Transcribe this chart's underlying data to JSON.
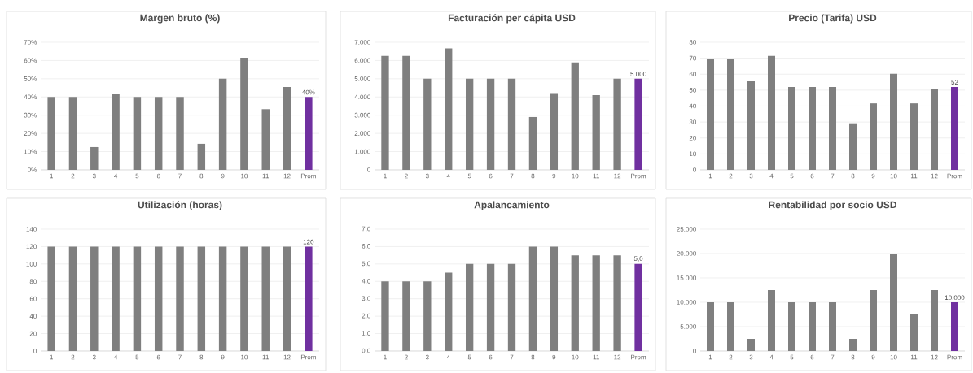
{
  "chart_data": [
    {
      "type": "bar",
      "title": "Margen bruto (%)",
      "categories": [
        "1",
        "2",
        "3",
        "4",
        "5",
        "6",
        "7",
        "8",
        "9",
        "10",
        "11",
        "12",
        "Prom"
      ],
      "values": [
        40,
        40,
        12.5,
        41.5,
        40,
        40,
        40,
        14.3,
        50,
        61.5,
        33.3,
        45.5,
        40
      ],
      "colors": [
        "#7f7f7f",
        "#7f7f7f",
        "#7f7f7f",
        "#7f7f7f",
        "#7f7f7f",
        "#7f7f7f",
        "#7f7f7f",
        "#7f7f7f",
        "#7f7f7f",
        "#7f7f7f",
        "#7f7f7f",
        "#7f7f7f",
        "#7030a0"
      ],
      "value_labels": [
        null,
        null,
        null,
        null,
        null,
        null,
        null,
        null,
        null,
        null,
        null,
        null,
        "40%"
      ],
      "ylim": [
        0,
        70
      ],
      "yticks": [
        {
          "value": 0,
          "label": "0%"
        },
        {
          "value": 10,
          "label": "10%"
        },
        {
          "value": 20,
          "label": "20%"
        },
        {
          "value": 30,
          "label": "30%"
        },
        {
          "value": 40,
          "label": "40%"
        },
        {
          "value": 50,
          "label": "50%"
        },
        {
          "value": 60,
          "label": "60%"
        },
        {
          "value": 70,
          "label": "70%"
        }
      ],
      "grid": "y"
    },
    {
      "type": "bar",
      "title": "Facturación per cápita USD",
      "categories": [
        "1",
        "2",
        "3",
        "4",
        "5",
        "6",
        "7",
        "8",
        "9",
        "10",
        "11",
        "12",
        "Prom"
      ],
      "values": [
        6250,
        6250,
        5000,
        6670,
        5000,
        5000,
        5000,
        2900,
        4170,
        5900,
        4100,
        5000,
        5000
      ],
      "colors": [
        "#7f7f7f",
        "#7f7f7f",
        "#7f7f7f",
        "#7f7f7f",
        "#7f7f7f",
        "#7f7f7f",
        "#7f7f7f",
        "#7f7f7f",
        "#7f7f7f",
        "#7f7f7f",
        "#7f7f7f",
        "#7f7f7f",
        "#7030a0"
      ],
      "value_labels": [
        null,
        null,
        null,
        null,
        null,
        null,
        null,
        null,
        null,
        null,
        null,
        null,
        "5.000"
      ],
      "ylim": [
        0,
        7000
      ],
      "yticks": [
        0,
        {
          "value": 1000,
          "label": "1.000"
        },
        {
          "value": 2000,
          "label": "2.000"
        },
        {
          "value": 3000,
          "label": "3.000"
        },
        {
          "value": 4000,
          "label": "4.000"
        },
        {
          "value": 5000,
          "label": "5.000"
        },
        {
          "value": 6000,
          "label": "6.000"
        },
        {
          "value": 7000,
          "label": "7.000"
        }
      ],
      "grid": "y"
    },
    {
      "type": "bar",
      "title": "Precio (Tarifa) USD",
      "categories": [
        "1",
        "2",
        "3",
        "4",
        "5",
        "6",
        "7",
        "8",
        "9",
        "10",
        "11",
        "12",
        "Prom"
      ],
      "values": [
        69.5,
        69.5,
        55.6,
        71.5,
        52,
        52,
        52,
        29.2,
        41.7,
        60.2,
        41.7,
        50.8,
        52
      ],
      "colors": [
        "#7f7f7f",
        "#7f7f7f",
        "#7f7f7f",
        "#7f7f7f",
        "#7f7f7f",
        "#7f7f7f",
        "#7f7f7f",
        "#7f7f7f",
        "#7f7f7f",
        "#7f7f7f",
        "#7f7f7f",
        "#7f7f7f",
        "#7030a0"
      ],
      "value_labels": [
        null,
        null,
        null,
        null,
        null,
        null,
        null,
        null,
        null,
        null,
        null,
        null,
        "52"
      ],
      "ylim": [
        0,
        80
      ],
      "yticks": [
        0,
        10,
        20,
        30,
        40,
        50,
        60,
        70,
        80
      ],
      "grid": "y"
    },
    {
      "type": "bar",
      "title": "Utilización (horas)",
      "categories": [
        "1",
        "2",
        "3",
        "4",
        "5",
        "6",
        "7",
        "8",
        "9",
        "10",
        "11",
        "12",
        "Prom"
      ],
      "values": [
        120,
        120,
        120,
        120,
        120,
        120,
        120,
        120,
        120,
        120,
        120,
        120,
        120
      ],
      "colors": [
        "#7f7f7f",
        "#7f7f7f",
        "#7f7f7f",
        "#7f7f7f",
        "#7f7f7f",
        "#7f7f7f",
        "#7f7f7f",
        "#7f7f7f",
        "#7f7f7f",
        "#7f7f7f",
        "#7f7f7f",
        "#7f7f7f",
        "#7030a0"
      ],
      "value_labels": [
        null,
        null,
        null,
        null,
        null,
        null,
        null,
        null,
        null,
        null,
        null,
        null,
        "120"
      ],
      "ylim": [
        0,
        140
      ],
      "yticks": [
        0,
        20,
        40,
        60,
        80,
        100,
        120,
        140
      ],
      "grid": "y"
    },
    {
      "type": "bar",
      "title": "Apalancamiento",
      "categories": [
        "1",
        "2",
        "3",
        "4",
        "5",
        "6",
        "7",
        "8",
        "9",
        "10",
        "11",
        "12",
        "Prom"
      ],
      "values": [
        4,
        4,
        4,
        4.5,
        5,
        5,
        5,
        6,
        6,
        5.5,
        5.5,
        5.5,
        5
      ],
      "colors": [
        "#7f7f7f",
        "#7f7f7f",
        "#7f7f7f",
        "#7f7f7f",
        "#7f7f7f",
        "#7f7f7f",
        "#7f7f7f",
        "#7f7f7f",
        "#7f7f7f",
        "#7f7f7f",
        "#7f7f7f",
        "#7f7f7f",
        "#7030a0"
      ],
      "value_labels": [
        null,
        null,
        null,
        null,
        null,
        null,
        null,
        null,
        null,
        null,
        null,
        null,
        "5,0"
      ],
      "ylim": [
        0,
        7
      ],
      "yticks": [
        {
          "value": 0,
          "label": "0,0"
        },
        {
          "value": 1,
          "label": "1,0"
        },
        {
          "value": 2,
          "label": "2,0"
        },
        {
          "value": 3,
          "label": "3,0"
        },
        {
          "value": 4,
          "label": "4,0"
        },
        {
          "value": 5,
          "label": "5,0"
        },
        {
          "value": 6,
          "label": "6,0"
        },
        {
          "value": 7,
          "label": "7,0"
        }
      ],
      "grid": "y"
    },
    {
      "type": "bar",
      "title": "Rentabilidad por socio USD",
      "categories": [
        "1",
        "2",
        "3",
        "4",
        "5",
        "6",
        "7",
        "8",
        "9",
        "10",
        "11",
        "12",
        "Prom"
      ],
      "values": [
        10000,
        10000,
        2500,
        12500,
        10000,
        10000,
        10000,
        2500,
        12500,
        20000,
        7500,
        12500,
        10000
      ],
      "colors": [
        "#7f7f7f",
        "#7f7f7f",
        "#7f7f7f",
        "#7f7f7f",
        "#7f7f7f",
        "#7f7f7f",
        "#7f7f7f",
        "#7f7f7f",
        "#7f7f7f",
        "#7f7f7f",
        "#7f7f7f",
        "#7f7f7f",
        "#7030a0"
      ],
      "value_labels": [
        null,
        null,
        null,
        null,
        null,
        null,
        null,
        null,
        null,
        null,
        null,
        null,
        "10.000"
      ],
      "ylim": [
        0,
        25000
      ],
      "yticks": [
        0,
        {
          "value": 5000,
          "label": "5.000"
        },
        {
          "value": 10000,
          "label": "10.000"
        },
        {
          "value": 15000,
          "label": "15.000"
        },
        {
          "value": 20000,
          "label": "20.000"
        },
        {
          "value": 25000,
          "label": "25.000"
        }
      ],
      "grid": "y"
    }
  ]
}
